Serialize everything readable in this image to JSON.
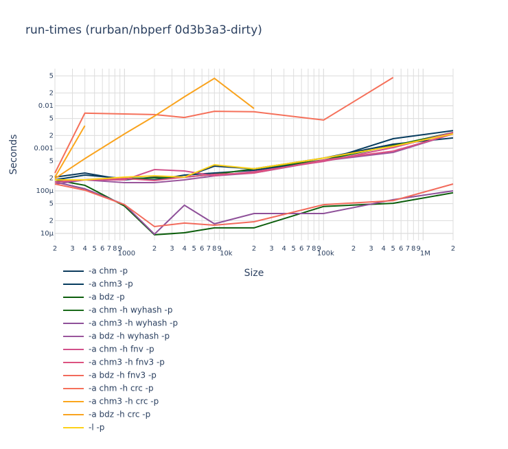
{
  "chart_data": {
    "type": "line",
    "title": "run-times (rurban/nbperf 0d3b3a3-dirty)",
    "x_label": "Size",
    "y_label": "Seconds",
    "xscale": "log",
    "yscale": "log",
    "grid": true,
    "legend": "bottom",
    "x": [
      200,
      400,
      1000,
      2000,
      4000,
      8000,
      20000,
      100000,
      500000,
      2000000
    ],
    "xlim": [
      200,
      2000000
    ],
    "ylim": [
      0.0743,
      6.9e-06
    ],
    "xticks": [
      {
        "value": 200,
        "label": "2"
      },
      {
        "value": 300,
        "label": "3"
      },
      {
        "value": 400,
        "label": "4"
      },
      {
        "value": 500,
        "label": "5"
      },
      {
        "value": 600,
        "label": "6"
      },
      {
        "value": 700,
        "label": "7"
      },
      {
        "value": 800,
        "label": "8"
      },
      {
        "value": 900,
        "label": "9"
      },
      1000,
      {
        "value": 2000,
        "label": "2"
      },
      {
        "value": 3000,
        "label": "3"
      },
      {
        "value": 4000,
        "label": "4"
      },
      {
        "value": 5000,
        "label": "5"
      },
      {
        "value": 6000,
        "label": "6"
      },
      {
        "value": 7000,
        "label": "7"
      },
      {
        "value": 8000,
        "label": "8"
      },
      {
        "value": 9000,
        "label": "9"
      },
      {
        "value": 10000,
        "label": "10k"
      },
      {
        "value": 20000,
        "label": "2"
      },
      {
        "value": 30000,
        "label": "3"
      },
      {
        "value": 40000,
        "label": "4"
      },
      {
        "value": 50000,
        "label": "5"
      },
      {
        "value": 60000,
        "label": "6"
      },
      {
        "value": 70000,
        "label": "7"
      },
      {
        "value": 80000,
        "label": "8"
      },
      {
        "value": 90000,
        "label": "9"
      },
      {
        "value": 100000,
        "label": "100k"
      },
      {
        "value": 200000,
        "label": "2"
      },
      {
        "value": 300000,
        "label": "3"
      },
      {
        "value": 400000,
        "label": "4"
      },
      {
        "value": 500000,
        "label": "5"
      },
      {
        "value": 600000,
        "label": "6"
      },
      {
        "value": 700000,
        "label": "7"
      },
      {
        "value": 800000,
        "label": "8"
      },
      {
        "value": 900000,
        "label": "9"
      },
      {
        "value": 1000000,
        "label": "1M"
      },
      {
        "value": 2000000,
        "label": "2"
      }
    ],
    "yticks": [
      {
        "value": 0.05,
        "label": "5"
      },
      {
        "value": 0.02,
        "label": "2"
      },
      0.01,
      {
        "value": 0.005,
        "label": "5"
      },
      {
        "value": 0.002,
        "label": "2"
      },
      0.001,
      {
        "value": 0.0005,
        "label": "5"
      },
      {
        "value": 0.0002,
        "label": "2"
      },
      {
        "value": 0.0001,
        "label": "100µ"
      },
      {
        "value": 5e-05,
        "label": "5"
      },
      {
        "value": 2e-05,
        "label": "2"
      },
      {
        "value": 1e-05,
        "label": "10µ"
      }
    ],
    "series": [
      {
        "name": "-a chm -p",
        "color": "#0b3a5c",
        "values": [
          0.00021,
          0.000263,
          0.000181,
          0.00021,
          0.00021,
          0.000381,
          0.00033,
          0.00059,
          0.00125,
          0.00175
        ]
      },
      {
        "name": "-a chm3 -p",
        "color": "#053b5e",
        "values": [
          0.000181,
          0.000235,
          0.000195,
          0.000181,
          0.000235,
          0.000263,
          0.000305,
          0.00051,
          0.00168,
          0.0026
        ]
      },
      {
        "name": "-a bdz -p",
        "color": "#0b5d0b",
        "values": [
          0.000181,
          0.000135,
          4.4e-05,
          9.3e-06,
          1.04e-05,
          1.35e-05,
          1.35e-05,
          4.3e-05,
          5.1e-05,
          9e-05
        ]
      },
      {
        "name": "-a chm -h wyhash -p",
        "color": "#1a6a1a",
        "values": [
          0.000181,
          0.000181,
          0.000195,
          0.0002,
          0.00021,
          0.000244,
          0.00033,
          0.00053,
          0.00116,
          0.00235
        ]
      },
      {
        "name": "-a chm3 -h wyhash -p",
        "color": "#8e5099",
        "values": [
          0.000162,
          0.000112,
          4.75e-05,
          9.6e-06,
          4.6e-05,
          1.68e-05,
          2.94e-05,
          2.94e-05,
          6.2e-05,
          0.0001
        ]
      },
      {
        "name": "-a bdz -h wyhash -p",
        "color": "#9a559c",
        "values": [
          0.000145,
          0.000181,
          0.000156,
          0.000156,
          0.000181,
          0.000226,
          0.000263,
          0.00051,
          0.0008,
          0.00218
        ]
      },
      {
        "name": "-a chm -h fnv -p",
        "color": "#d2508a",
        "values": [
          0.000181,
          0.000181,
          0.000181,
          0.000316,
          0.000294,
          0.000226,
          0.000283,
          0.00049,
          0.00104,
          0.00235
        ]
      },
      {
        "name": "-a chm3 -h fnv3 -p",
        "color": "#dc5280",
        "values": [
          0.000162,
          0.000181,
          0.000195,
          0.000175,
          0.00021,
          0.000244,
          0.000263,
          0.00053,
          0.00086,
          0.00218
        ]
      },
      {
        "name": "-a bdz -h fnv3 -p",
        "color": "#f26a5b",
        "values": [
          0.000145,
          0.000104,
          4.75e-05,
          1.45e-05,
          1.75e-05,
          1.56e-05,
          1.88e-05,
          4.75e-05,
          5.9e-05,
          0.000145
        ]
      },
      {
        "name": "-a chm -h crc -p",
        "color": "#f5705a",
        "values": [
          0.000263,
          0.0067,
          0.0064,
          0.0062,
          0.0053,
          0.0074,
          0.0072,
          0.0046,
          0.046,
          null
        ]
      },
      {
        "name": "-a chm3 -h crc -p",
        "color": "#fba61c",
        "values": [
          0.00021,
          0.0034,
          null,
          null,
          null,
          null,
          null,
          null,
          null,
          null
        ]
      },
      {
        "name": "-a bdz -h crc -p",
        "color": "#f9a31e",
        "values": [
          0.000195,
          0.00057,
          0.00218,
          0.0057,
          0.0162,
          0.044,
          0.0086,
          null,
          null,
          null
        ]
      },
      {
        "name": "-l -p",
        "color": "#fdd017",
        "values": [
          0.000181,
          0.000181,
          0.00021,
          0.000226,
          0.00021,
          0.00041,
          0.00033,
          0.00059,
          0.00112,
          0.00218
        ]
      }
    ]
  }
}
